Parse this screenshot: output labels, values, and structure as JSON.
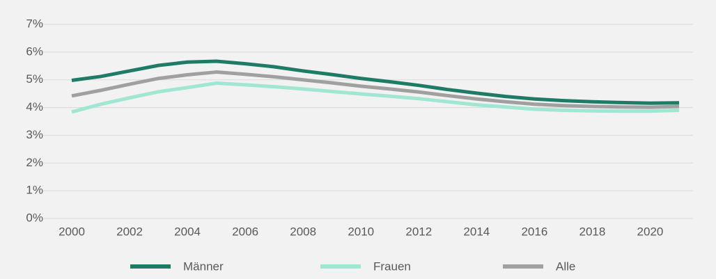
{
  "chart_data": {
    "type": "line",
    "x": [
      2000,
      2001,
      2002,
      2003,
      2004,
      2005,
      2006,
      2007,
      2008,
      2009,
      2010,
      2011,
      2012,
      2013,
      2014,
      2015,
      2016,
      2017,
      2018,
      2019,
      2020,
      2021
    ],
    "series": [
      {
        "name": "Männer",
        "color": "#1e7b65",
        "values": [
          4.98,
          5.12,
          5.32,
          5.52,
          5.64,
          5.67,
          5.58,
          5.47,
          5.32,
          5.19,
          5.05,
          4.93,
          4.8,
          4.65,
          4.52,
          4.4,
          4.31,
          4.25,
          4.21,
          4.18,
          4.16,
          4.17
        ]
      },
      {
        "name": "Frauen",
        "color": "#a0e6d2",
        "values": [
          3.84,
          4.12,
          4.35,
          4.57,
          4.72,
          4.88,
          4.82,
          4.75,
          4.67,
          4.58,
          4.49,
          4.41,
          4.32,
          4.21,
          4.1,
          4.02,
          3.94,
          3.9,
          3.88,
          3.87,
          3.87,
          3.9
        ]
      },
      {
        "name": "Alle",
        "color": "#a0a0a0",
        "values": [
          4.42,
          4.62,
          4.84,
          5.05,
          5.18,
          5.28,
          5.2,
          5.11,
          5.0,
          4.89,
          4.77,
          4.67,
          4.56,
          4.43,
          4.31,
          4.21,
          4.12,
          4.07,
          4.04,
          4.02,
          4.01,
          4.04
        ]
      }
    ],
    "xlim": [
      2000,
      2021
    ],
    "xticks": [
      2000,
      2002,
      2004,
      2006,
      2008,
      2010,
      2012,
      2014,
      2016,
      2018,
      2020
    ],
    "ylim": [
      0,
      7
    ],
    "yticks": [
      {
        "value": 0,
        "label": "0%"
      },
      {
        "value": 1,
        "label": "1%"
      },
      {
        "value": 2,
        "label": "2%"
      },
      {
        "value": 3,
        "label": "3%"
      },
      {
        "value": 4,
        "label": "4%"
      },
      {
        "value": 5,
        "label": "5%"
      },
      {
        "value": 6,
        "label": "6%"
      },
      {
        "value": 7,
        "label": "7%"
      }
    ],
    "grid": true,
    "legend": "bottom"
  }
}
